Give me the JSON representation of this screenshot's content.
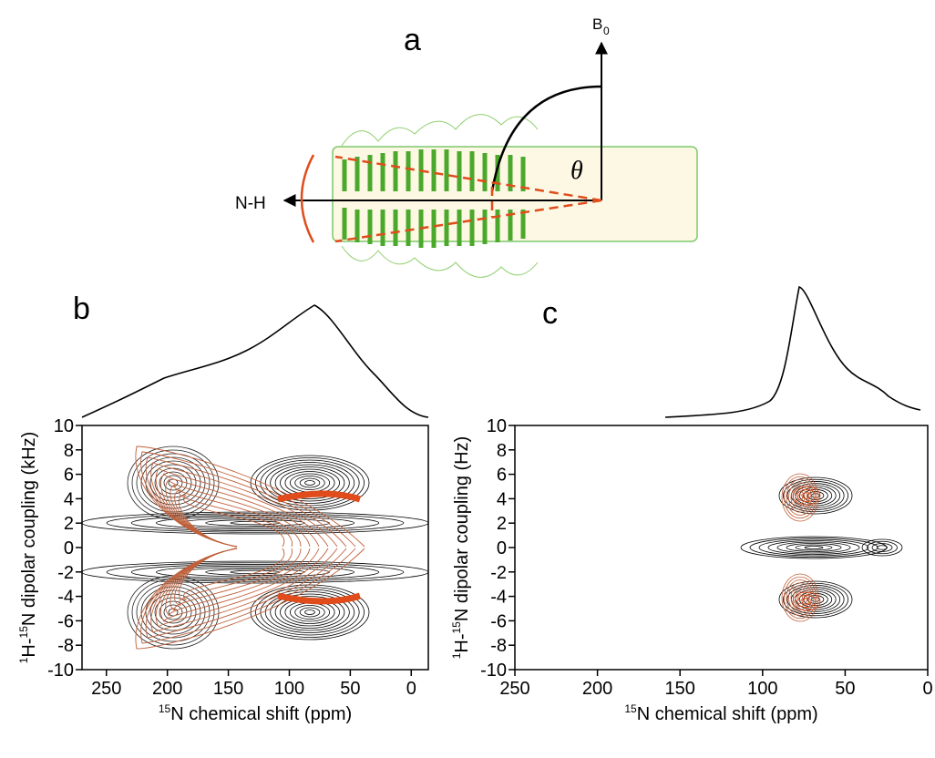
{
  "panel_a": {
    "label": "a",
    "field_label": "B",
    "field_subscript": "0",
    "vector_label": "N-H",
    "angle_label": "θ"
  },
  "chart_data": [
    {
      "type": "contour",
      "label": "b",
      "xlabel": [
        {
          "sup": "15"
        },
        {
          "text": "N chemical shift (ppm)"
        }
      ],
      "ylabel": [
        {
          "sup": "1"
        },
        {
          "text": "H-"
        },
        {
          "sup": "15"
        },
        {
          "text": "N dipolar coupling (kHz)"
        }
      ],
      "xlim": [
        270,
        -14
      ],
      "xticks": [
        250,
        200,
        150,
        100,
        50,
        0
      ],
      "ylim": [
        -10,
        10
      ],
      "yticks": [
        -10,
        -8,
        -6,
        -4,
        -2,
        0,
        2,
        4,
        6,
        8,
        10
      ]
    },
    {
      "type": "contour",
      "label": "c",
      "xlabel": [
        {
          "sup": "15"
        },
        {
          "text": "N chemical shift (ppm)"
        }
      ],
      "ylabel": [
        {
          "sup": "1"
        },
        {
          "text": "H-"
        },
        {
          "sup": "15"
        },
        {
          "text": "N dipolar coupling (Hz)"
        }
      ],
      "xlim": [
        250,
        0
      ],
      "xticks": [
        250,
        200,
        150,
        100,
        50,
        0
      ],
      "ylim": [
        -10,
        10
      ],
      "yticks": [
        -10,
        -8,
        -6,
        -4,
        -2,
        0,
        2,
        4,
        6,
        8,
        10
      ]
    }
  ]
}
